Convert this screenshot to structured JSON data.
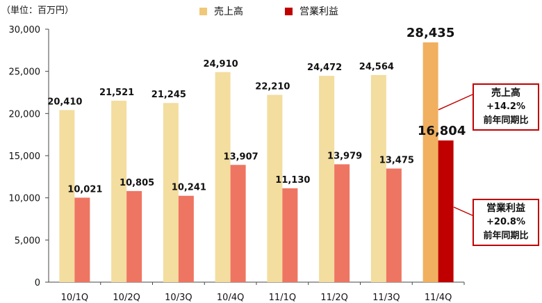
{
  "unit_label": "（単位：百万円）",
  "legend": [
    {
      "label": "売上高",
      "color": "#f2d28f"
    },
    {
      "label": "営業利益",
      "color": "#c00000"
    }
  ],
  "callouts": [
    {
      "line1": "売上高",
      "line2": "+14.2%",
      "line3": "前年同期比"
    },
    {
      "line1": "営業利益",
      "line2": "+20.8%",
      "line3": "前年同期比"
    }
  ],
  "colors": {
    "sales": "#f3dd9f",
    "profit": "#ee7562",
    "sales_highlight": "#f0b060",
    "profit_highlight": "#c00000",
    "callout_border": "#c00000"
  },
  "chart_data": {
    "type": "bar",
    "categories": [
      "10/1Q",
      "10/2Q",
      "10/3Q",
      "10/4Q",
      "11/1Q",
      "11/2Q",
      "11/3Q",
      "11/4Q"
    ],
    "series": [
      {
        "name": "売上高",
        "values": [
          20410,
          21521,
          21245,
          24910,
          22210,
          24472,
          24564,
          28435
        ]
      },
      {
        "name": "営業利益",
        "values": [
          10021,
          10805,
          10241,
          13907,
          11130,
          13979,
          13475,
          16804
        ]
      }
    ],
    "value_labels": [
      [
        "20,410",
        "21,521",
        "21,245",
        "24,910",
        "22,210",
        "24,472",
        "24,564",
        "28,435"
      ],
      [
        "10,021",
        "10,805",
        "10,241",
        "13,907",
        "11,130",
        "13,979",
        "13,475",
        "16,804"
      ]
    ],
    "ylim": [
      0,
      30000
    ],
    "yticks": [
      0,
      5000,
      10000,
      15000,
      20000,
      25000,
      30000
    ],
    "ytick_labels": [
      "0",
      "5,000",
      "10,000",
      "15,000",
      "20,000",
      "25,000",
      "30,000"
    ],
    "highlight_index": 7,
    "legend_position": "top",
    "grid": false
  }
}
